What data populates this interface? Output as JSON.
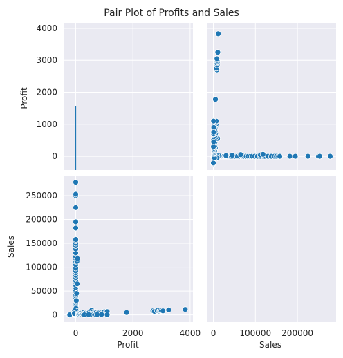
{
  "chart_data": {
    "type": "scatter",
    "title": "Pair Plot of Profits and Sales",
    "grid": true,
    "style": "darkgrid",
    "colors": {
      "face": "#EAEAF2",
      "grid": "#FFFFFF",
      "point": "#1F77B4",
      "point_edge": "#FFFFFF"
    },
    "variables": [
      "Profit",
      "Sales"
    ],
    "axes": {
      "Profit": {
        "label": "Profit",
        "range": [
          -400,
          4100
        ],
        "ticks": [
          0,
          2000,
          4000
        ],
        "ticks_y": [
          0,
          1000,
          2000,
          3000,
          4000
        ],
        "range_y": [
          -430,
          4150
        ]
      },
      "Sales": {
        "label": "Sales",
        "range": [
          -14000,
          292000
        ],
        "ticks": [
          0,
          100000,
          200000
        ],
        "ticks_y": [
          0,
          50000,
          100000,
          150000,
          200000,
          250000
        ],
        "range_y": [
          -15000,
          292000
        ]
      }
    },
    "diagonal": {
      "Profit": {
        "kind": "histogram",
        "bin_x": 0,
        "bar_top": 1570,
        "bar_bottom": -430
      },
      "Sales": {
        "kind": "empty"
      }
    },
    "points": [
      [
        -230,
        10
      ],
      [
        -210,
        5
      ],
      [
        -30,
        80
      ],
      [
        -10,
        500
      ],
      [
        0,
        1000
      ],
      [
        0,
        1500
      ],
      [
        0,
        2000
      ],
      [
        0,
        3000
      ],
      [
        0,
        4000
      ],
      [
        0,
        5000
      ],
      [
        0,
        6000
      ],
      [
        0,
        8000
      ],
      [
        0,
        10000
      ],
      [
        0,
        12000
      ],
      [
        0,
        15000
      ],
      [
        0,
        18000
      ],
      [
        0,
        20000
      ],
      [
        0,
        22000
      ],
      [
        0,
        25000
      ],
      [
        0,
        28000
      ],
      [
        0,
        30000
      ],
      [
        0,
        33000
      ],
      [
        0,
        36000
      ],
      [
        0,
        40000
      ],
      [
        0,
        43000
      ],
      [
        0,
        48000
      ],
      [
        0,
        52000
      ],
      [
        0,
        57000
      ],
      [
        0,
        62000
      ],
      [
        0,
        68000
      ],
      [
        0,
        72000
      ],
      [
        0,
        78000
      ],
      [
        0,
        83000
      ],
      [
        0,
        88000
      ],
      [
        0,
        92000
      ],
      [
        0,
        98000
      ],
      [
        0,
        105000
      ],
      [
        0,
        112000
      ],
      [
        0,
        118000
      ],
      [
        0,
        122000
      ],
      [
        0,
        130000
      ],
      [
        0,
        138000
      ],
      [
        0,
        145000
      ],
      [
        0,
        150000
      ],
      [
        0,
        155000
      ],
      [
        0,
        158000
      ],
      [
        0,
        182000
      ],
      [
        0,
        195000
      ],
      [
        0,
        225000
      ],
      [
        0,
        250000
      ],
      [
        0,
        253000
      ],
      [
        0,
        278000
      ],
      [
        10,
        14000
      ],
      [
        15,
        9000
      ],
      [
        20,
        30000
      ],
      [
        30,
        45000
      ],
      [
        40,
        112000
      ],
      [
        50,
        65000
      ],
      [
        60,
        118000
      ],
      [
        -60,
        7000
      ],
      [
        -40,
        9000
      ],
      [
        -50,
        3000
      ],
      [
        80,
        2000
      ],
      [
        100,
        1500
      ],
      [
        120,
        3000
      ],
      [
        150,
        2500
      ],
      [
        180,
        4000
      ],
      [
        200,
        1800
      ],
      [
        220,
        3500
      ],
      [
        250,
        2000
      ],
      [
        280,
        5000
      ],
      [
        300,
        2500
      ],
      [
        320,
        3000
      ],
      [
        350,
        3500
      ],
      [
        380,
        2000
      ],
      [
        400,
        2500
      ],
      [
        450,
        4000
      ],
      [
        480,
        1500
      ],
      [
        500,
        3000
      ],
      [
        520,
        2800
      ],
      [
        550,
        4500
      ],
      [
        560,
        10000
      ],
      [
        580,
        2000
      ],
      [
        600,
        6000
      ],
      [
        620,
        3000
      ],
      [
        650,
        4000
      ],
      [
        700,
        2500
      ],
      [
        720,
        5500
      ],
      [
        750,
        3000
      ],
      [
        800,
        4500
      ],
      [
        820,
        2000
      ],
      [
        850,
        3500
      ],
      [
        900,
        2500
      ],
      [
        930,
        5500
      ],
      [
        950,
        4000
      ],
      [
        980,
        3000
      ],
      [
        1000,
        6500
      ],
      [
        1020,
        2500
      ],
      [
        1050,
        5000
      ],
      [
        1080,
        3000
      ],
      [
        1100,
        7000
      ],
      [
        300,
        200
      ],
      [
        500,
        300
      ],
      [
        700,
        500
      ],
      [
        900,
        1000
      ],
      [
        1100,
        500
      ],
      [
        750,
        800
      ],
      [
        450,
        600
      ],
      [
        1780,
        5000
      ],
      [
        2700,
        8500
      ],
      [
        2750,
        7500
      ],
      [
        2850,
        9000
      ],
      [
        2920,
        8000
      ],
      [
        2950,
        9500
      ],
      [
        3000,
        9000
      ],
      [
        3050,
        8500
      ],
      [
        3250,
        10500
      ],
      [
        3830,
        11500
      ]
    ]
  }
}
